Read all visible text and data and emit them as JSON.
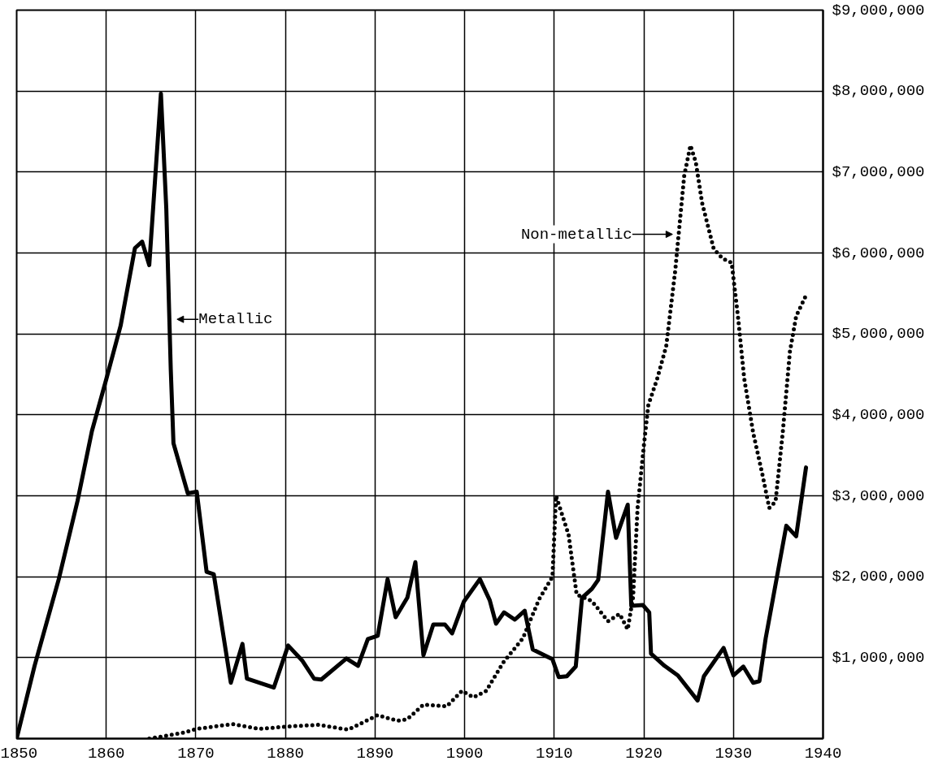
{
  "chart_data": {
    "type": "line",
    "xlim": [
      1850,
      1940
    ],
    "xticks": [
      1850,
      1860,
      1870,
      1880,
      1890,
      1900,
      1910,
      1920,
      1930,
      1940
    ],
    "ylim": [
      0,
      9000000
    ],
    "yticks": [
      {
        "value": 0,
        "label": null
      },
      {
        "value": 1000000,
        "label": "$1,000,000"
      },
      {
        "value": 2000000,
        "label": "$2,000,000"
      },
      {
        "value": 3000000,
        "label": "$3,000,000"
      },
      {
        "value": 4000000,
        "label": "$4,000,000"
      },
      {
        "value": 5000000,
        "label": "$5,000,000"
      },
      {
        "value": 6000000,
        "label": "$6,000,000"
      },
      {
        "value": 7000000,
        "label": "$7,000,000"
      },
      {
        "value": 8000000,
        "label": "$8,000,000"
      },
      {
        "value": 9000000,
        "label": "$9,000,000"
      }
    ],
    "grid": true,
    "series": [
      {
        "name": "Metallic",
        "color": "#000000",
        "line_style": "solid",
        "x": [
          1850,
          1852,
          1854.7,
          1856.8,
          1858.4,
          1860,
          1861.6,
          1863.2,
          1864,
          1864.8,
          1866.1,
          1866.7,
          1867.2,
          1867.5,
          1869.1,
          1870.1,
          1871.2,
          1872,
          1873.9,
          1875.2,
          1875.7,
          1878.7,
          1880.3,
          1881.9,
          1883.2,
          1884,
          1886.8,
          1888.1,
          1889.2,
          1890.3,
          1891.4,
          1892.3,
          1893.6,
          1894.5,
          1895.4,
          1896.5,
          1897.8,
          1898.6,
          1899.9,
          1901.7,
          1902.8,
          1903.5,
          1904.4,
          1905.6,
          1906.7,
          1907.6,
          1909.8,
          1910.5,
          1911.4,
          1912.4,
          1913.1,
          1914.2,
          1914.9,
          1916.0,
          1916.9,
          1918.2,
          1918.6,
          1919.9,
          1920.6,
          1920.8,
          1922.3,
          1923.8,
          1926.0,
          1926.7,
          1928.9,
          1930.0,
          1931.1,
          1932.2,
          1932.9,
          1933.6,
          1935.9,
          1937.0,
          1938.1
        ],
        "values": [
          0,
          900000,
          1970000,
          2940000,
          3800000,
          4440000,
          5100000,
          6060000,
          6140000,
          5850000,
          7970000,
          6550000,
          4560000,
          3650000,
          3030000,
          3050000,
          2060000,
          2030000,
          690000,
          1170000,
          740000,
          630000,
          1150000,
          960000,
          740000,
          730000,
          990000,
          900000,
          1230000,
          1270000,
          1970000,
          1500000,
          1740000,
          2180000,
          1030000,
          1410000,
          1410000,
          1300000,
          1690000,
          1970000,
          1710000,
          1420000,
          1560000,
          1470000,
          1580000,
          1100000,
          980000,
          760000,
          770000,
          890000,
          1740000,
          1850000,
          1960000,
          3050000,
          2480000,
          2890000,
          1640000,
          1650000,
          1560000,
          1050000,
          900000,
          780000,
          470000,
          770000,
          1120000,
          780000,
          890000,
          690000,
          710000,
          1240000,
          2630000,
          2500000,
          3350000
        ]
      },
      {
        "name": "Non-metallic",
        "color": "#000000",
        "line_style": "dotted",
        "x": [
          1864.8,
          1868.5,
          1870.1,
          1874.1,
          1877.1,
          1880.3,
          1883.7,
          1887,
          1890.3,
          1892.5,
          1893.6,
          1895.4,
          1898,
          1899.7,
          1901,
          1902.4,
          1904.3,
          1906.5,
          1908.3,
          1909.8,
          1910.2,
          1911.6,
          1912.5,
          1914.2,
          1916,
          1917.3,
          1918.2,
          1918.8,
          1919.3,
          1920,
          1920.5,
          1921.5,
          1922.5,
          1923.5,
          1924.5,
          1925.2,
          1925.8,
          1926.5,
          1927.8,
          1928.8,
          1929.8,
          1930.5,
          1931.2,
          1932.2,
          1933.2,
          1934,
          1934.7,
          1935.5,
          1936.3,
          1937,
          1938.2
        ],
        "values": [
          0,
          70000,
          120000,
          180000,
          120000,
          150000,
          170000,
          110000,
          290000,
          220000,
          240000,
          420000,
          400000,
          590000,
          510000,
          590000,
          940000,
          1240000,
          1720000,
          2000000,
          3000000,
          2520000,
          1780000,
          1700000,
          1450000,
          1540000,
          1350000,
          1750000,
          2850000,
          3620000,
          4120000,
          4450000,
          4850000,
          5780000,
          6950000,
          7330000,
          7120000,
          6620000,
          6050000,
          5930000,
          5880000,
          5220000,
          4450000,
          3780000,
          3280000,
          2850000,
          2930000,
          3780000,
          4780000,
          5220000,
          5500000
        ]
      }
    ]
  }
}
